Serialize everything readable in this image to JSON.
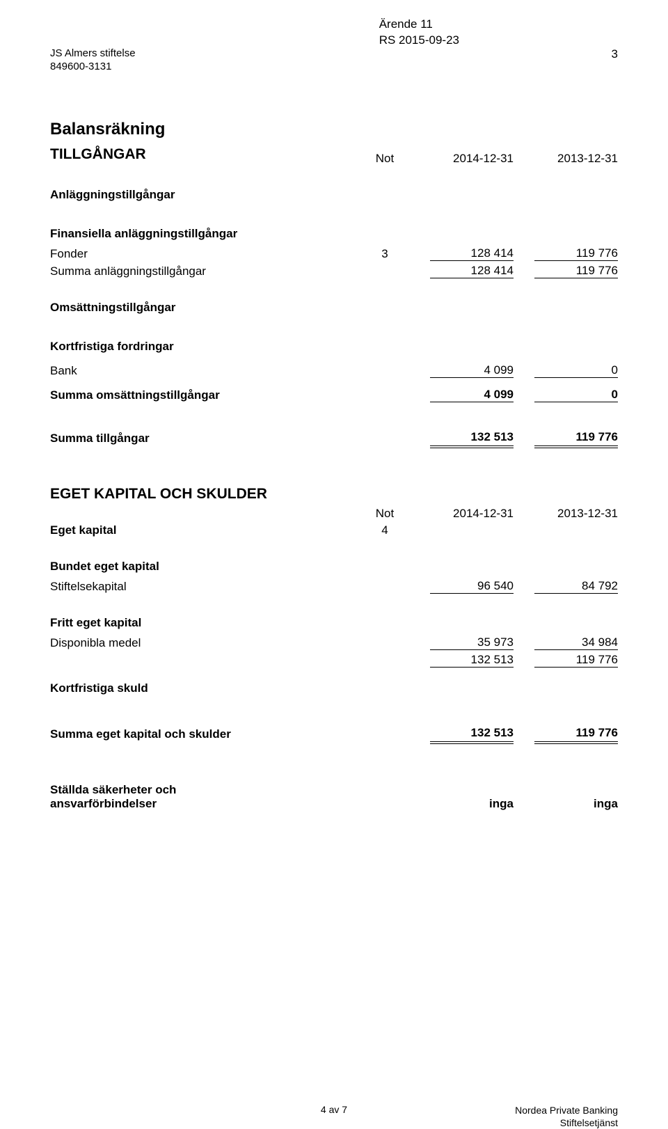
{
  "header": {
    "left_line1": "JS Almers stiftelse",
    "left_line2": "849600-3131",
    "right_line1": "Ärende 11",
    "right_line2": "RS 2015-09-23",
    "page_number": "3"
  },
  "balance": {
    "title": "Balansräkning",
    "assets_title": "TILLGÅNGAR",
    "note_header": "Not",
    "period_current": "2014-12-31",
    "period_prior": "2013-12-31",
    "fixed_assets_header": "Anläggningstillgångar",
    "financial_fixed_header": "Finansiella anläggningstillgångar",
    "funds_label": "Fonder",
    "funds_note": "3",
    "funds_cur": "128 414",
    "funds_pri": "119 776",
    "sum_fixed_label": "Summa anläggningstillgångar",
    "sum_fixed_cur": "128 414",
    "sum_fixed_pri": "119 776",
    "current_assets_header": "Omsättningstillgångar",
    "receivables_header": "Kortfristiga fordringar",
    "bank_label": "Bank",
    "bank_cur": "4 099",
    "bank_pri": "0",
    "sum_current_label": "Summa omsättningstillgångar",
    "sum_current_cur": "4 099",
    "sum_current_pri": "0",
    "sum_assets_label": "Summa tillgångar",
    "sum_assets_cur": "132 513",
    "sum_assets_pri": "119 776"
  },
  "equity": {
    "title": "EGET KAPITAL OCH SKULDER",
    "note_header": "Not",
    "eget_kapital_label": "Eget kapital",
    "eget_kapital_note": "4",
    "bundet_header": "Bundet eget kapital",
    "stiftelsekapital_label": "Stiftelsekapital",
    "stiftelsekapital_cur": "96 540",
    "stiftelsekapital_pri": "84 792",
    "fritt_header": "Fritt eget kapital",
    "disponibla_label": "Disponibla medel",
    "disponibla_cur": "35 973",
    "disponibla_pri": "34 984",
    "subtotal_cur": "132 513",
    "subtotal_pri": "119 776",
    "kortfristiga_skuld": "Kortfristiga skuld",
    "sum_equity_label": "Summa eget kapital och skulder",
    "sum_equity_cur": "132 513",
    "sum_equity_pri": "119 776",
    "pledged_label1": "Ställda säkerheter och",
    "pledged_label2": "ansvarförbindelser",
    "pledged_cur": "inga",
    "pledged_pri": "inga"
  },
  "footer": {
    "center": "4 av 7",
    "right_line1": "Nordea Private Banking",
    "right_line2": "Stiftelsetjänst"
  }
}
